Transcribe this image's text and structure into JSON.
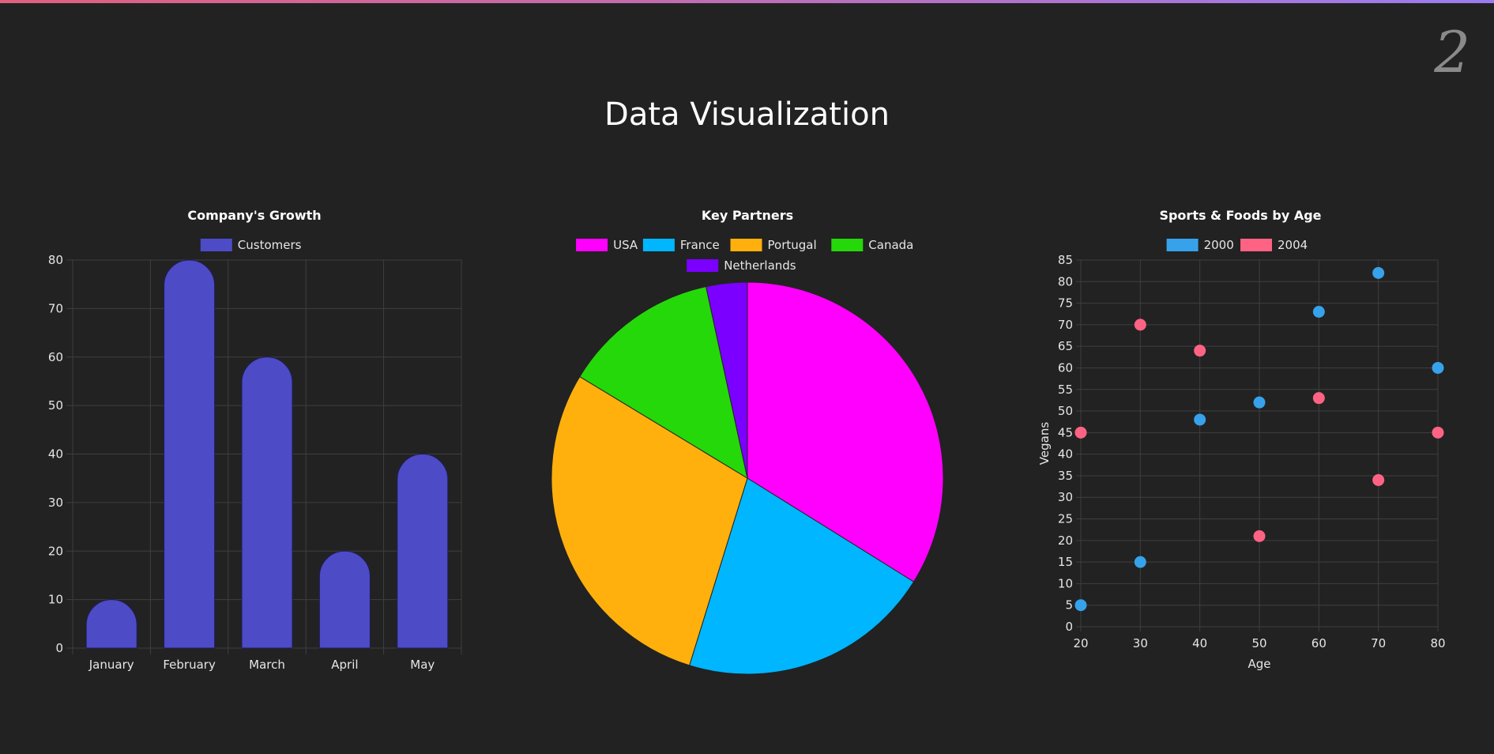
{
  "page": {
    "title": "Data Visualization",
    "badge": "2",
    "accent_gradient": [
      "#e0607e",
      "#9a7cf0"
    ],
    "background": "#222222"
  },
  "chart_data": [
    {
      "type": "bar",
      "title": "Company's Growth",
      "categories": [
        "January",
        "February",
        "March",
        "April",
        "May"
      ],
      "series": [
        {
          "name": "Customers",
          "values": [
            10,
            80,
            60,
            20,
            40
          ],
          "color": "#4e4bc6"
        }
      ],
      "ylim": [
        0,
        80
      ],
      "yticks": [
        0,
        10,
        20,
        30,
        40,
        50,
        60,
        70,
        80
      ],
      "xlabel": "",
      "ylabel": "",
      "grid": true,
      "legend": "top-center"
    },
    {
      "type": "pie",
      "title": "Key Partners",
      "slices": [
        {
          "name": "USA",
          "value": 34,
          "color": "#ff00ff"
        },
        {
          "name": "France",
          "value": 21,
          "color": "#00b6ff"
        },
        {
          "name": "Portugal",
          "value": 29,
          "color": "#ffb00c"
        },
        {
          "name": "Canada",
          "value": 13,
          "color": "#25d80a"
        },
        {
          "name": "Netherlands",
          "value": 3.4,
          "color": "#7b00ff"
        }
      ],
      "legend": "top-center"
    },
    {
      "type": "scatter",
      "title": "Sports & Foods by Age",
      "xlabel": "Age",
      "ylabel": "Vegans",
      "xlim": [
        20,
        80
      ],
      "ylim": [
        0,
        85
      ],
      "xticks": [
        20,
        30,
        40,
        50,
        60,
        70,
        80
      ],
      "yticks": [
        0,
        5,
        10,
        15,
        20,
        25,
        30,
        35,
        40,
        45,
        50,
        55,
        60,
        65,
        70,
        75,
        80,
        85
      ],
      "series": [
        {
          "name": "2000",
          "color": "#36a2eb",
          "points": [
            [
              20,
              5
            ],
            [
              30,
              15
            ],
            [
              40,
              48
            ],
            [
              50,
              52
            ],
            [
              60,
              73
            ],
            [
              70,
              82
            ],
            [
              80,
              60
            ]
          ]
        },
        {
          "name": "2004",
          "color": "#ff6384",
          "points": [
            [
              20,
              45
            ],
            [
              30,
              70
            ],
            [
              40,
              64
            ],
            [
              50,
              21
            ],
            [
              60,
              53
            ],
            [
              70,
              34
            ],
            [
              80,
              45
            ]
          ]
        }
      ],
      "grid": true,
      "legend": "top-center"
    }
  ]
}
